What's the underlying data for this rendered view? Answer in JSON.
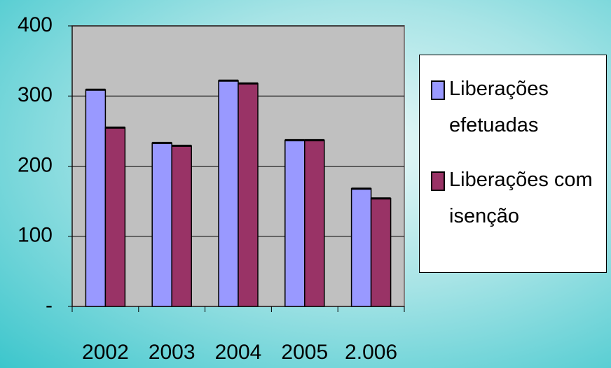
{
  "chart_data": {
    "type": "bar",
    "categories": [
      "2002",
      "2003",
      "2004",
      "2005",
      "2.006"
    ],
    "series": [
      {
        "name": "Liberações efetuadas",
        "color": "#9999ff",
        "values": [
          309,
          233,
          322,
          237,
          168
        ]
      },
      {
        "name": "Liberações com isenção",
        "color": "#993366",
        "values": [
          255,
          229,
          318,
          237,
          154
        ]
      }
    ],
    "ylim": [
      0,
      400
    ],
    "yticks": [
      {
        "value": 0,
        "label": "-"
      },
      100,
      200,
      300,
      400
    ],
    "grid": true,
    "legend": "right"
  }
}
